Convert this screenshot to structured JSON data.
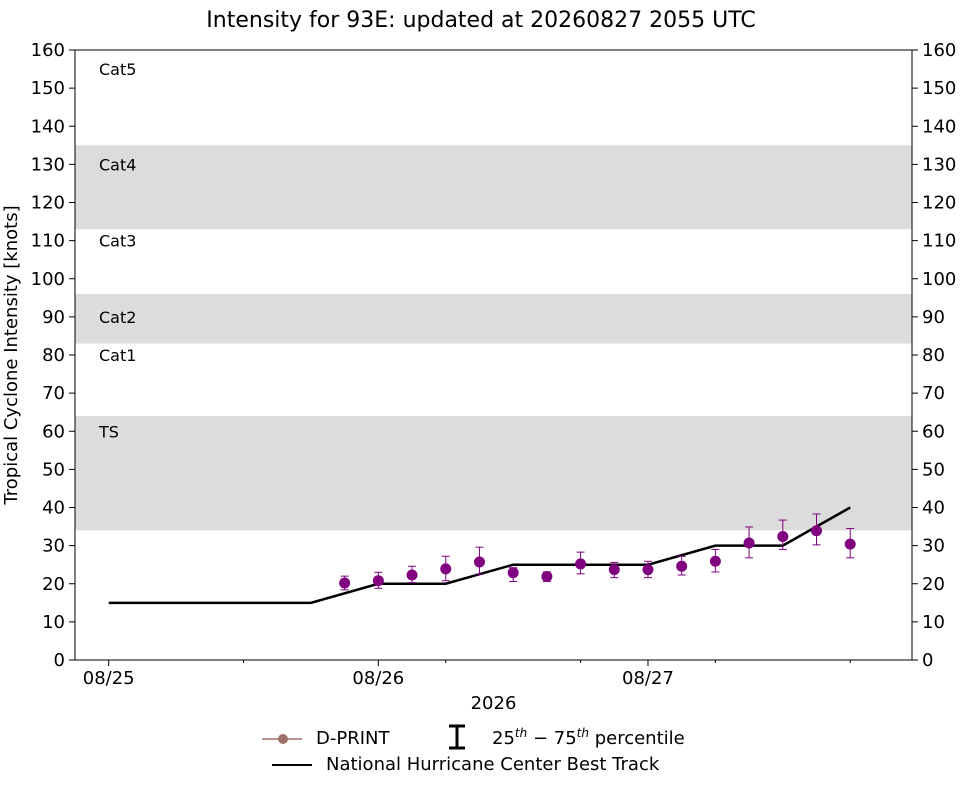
{
  "chart_data": {
    "type": "scatter",
    "title": "Intensity for 93E: updated at 20260827 2055 UTC",
    "xlabel": "2026",
    "ylabel": "Tropical Cyclone Intensity [knots]",
    "xlim": [
      "2026-08-24T21:00",
      "2026-08-27T23:30"
    ],
    "ylim": [
      0,
      160
    ],
    "yticks": [
      0,
      10,
      20,
      30,
      40,
      50,
      60,
      70,
      80,
      90,
      100,
      110,
      120,
      130,
      140,
      150,
      160
    ],
    "xticks": [
      {
        "date": "2026-08-25T00:00",
        "label": "08/25"
      },
      {
        "date": "2026-08-26T00:00",
        "label": "08/26"
      },
      {
        "date": "2026-08-27T00:00",
        "label": "08/27"
      }
    ],
    "minor_xticks": [
      "2026-08-25T12:00",
      "2026-08-26T06:00",
      "2026-08-26T18:00",
      "2026-08-27T06:00",
      "2026-08-27T18:00"
    ],
    "right_axis": true,
    "grid": false,
    "bands": [
      {
        "from": 34,
        "to": 64,
        "label": "TS",
        "shaded": true,
        "label_y": 60
      },
      {
        "from": 64,
        "to": 83,
        "label": "Cat1",
        "shaded": false,
        "label_y": 80
      },
      {
        "from": 83,
        "to": 96,
        "label": "Cat2",
        "shaded": true,
        "label_y": 90
      },
      {
        "from": 96,
        "to": 113,
        "label": "Cat3",
        "shaded": false,
        "label_y": 110
      },
      {
        "from": 113,
        "to": 135,
        "label": "Cat4",
        "shaded": true,
        "label_y": 130
      },
      {
        "from": 135,
        "to": 160,
        "label": "Cat5",
        "shaded": false,
        "label_y": 155
      }
    ],
    "series": [
      {
        "name": "D-PRINT",
        "color": "#800080",
        "legend_color": "#a0706a",
        "points": [
          {
            "x": "2026-08-25T21:00",
            "y": 20.2,
            "p25": 18.4,
            "p75": 22.0
          },
          {
            "x": "2026-08-26T00:00",
            "y": 20.8,
            "p25": 18.8,
            "p75": 23.0
          },
          {
            "x": "2026-08-26T03:00",
            "y": 22.3,
            "p25": 20.3,
            "p75": 24.6
          },
          {
            "x": "2026-08-26T06:00",
            "y": 23.9,
            "p25": 20.8,
            "p75": 27.2
          },
          {
            "x": "2026-08-26T09:00",
            "y": 25.7,
            "p25": 22.5,
            "p75": 29.6
          },
          {
            "x": "2026-08-26T12:00",
            "y": 22.9,
            "p25": 20.6,
            "p75": 24.2
          },
          {
            "x": "2026-08-26T15:00",
            "y": 21.9,
            "p25": 20.6,
            "p75": 23.1
          },
          {
            "x": "2026-08-26T18:00",
            "y": 25.2,
            "p25": 22.6,
            "p75": 28.3
          },
          {
            "x": "2026-08-26T21:00",
            "y": 23.7,
            "p25": 21.6,
            "p75": 25.6
          },
          {
            "x": "2026-08-27T00:00",
            "y": 23.7,
            "p25": 21.6,
            "p75": 25.9
          },
          {
            "x": "2026-08-27T03:00",
            "y": 24.6,
            "p25": 22.3,
            "p75": 27.2
          },
          {
            "x": "2026-08-27T06:00",
            "y": 25.9,
            "p25": 23.1,
            "p75": 29.0
          },
          {
            "x": "2026-08-27T09:00",
            "y": 30.7,
            "p25": 26.8,
            "p75": 34.9
          },
          {
            "x": "2026-08-27T12:00",
            "y": 32.4,
            "p25": 29.0,
            "p75": 36.7
          },
          {
            "x": "2026-08-27T15:00",
            "y": 33.9,
            "p25": 30.2,
            "p75": 38.3
          },
          {
            "x": "2026-08-27T18:00",
            "y": 30.4,
            "p25": 26.8,
            "p75": 34.5
          }
        ]
      },
      {
        "name": "National Hurricane Center Best Track",
        "color": "#000000",
        "points": [
          {
            "x": "2026-08-25T00:00",
            "y": 15
          },
          {
            "x": "2026-08-25T18:00",
            "y": 15
          },
          {
            "x": "2026-08-26T00:00",
            "y": 20
          },
          {
            "x": "2026-08-26T06:00",
            "y": 20
          },
          {
            "x": "2026-08-26T12:00",
            "y": 25
          },
          {
            "x": "2026-08-26T18:00",
            "y": 25
          },
          {
            "x": "2026-08-27T00:00",
            "y": 25
          },
          {
            "x": "2026-08-27T06:00",
            "y": 30
          },
          {
            "x": "2026-08-27T12:00",
            "y": 30
          },
          {
            "x": "2026-08-27T18:00",
            "y": 40
          }
        ]
      }
    ]
  },
  "legend": {
    "dprint": "D-PRINT",
    "percentile_prefix": "25",
    "percentile_sup1": "th",
    "percentile_mid": " − 75",
    "percentile_sup2": "th",
    "percentile_suffix": " percentile",
    "besttrack": "National Hurricane Center Best Track"
  }
}
